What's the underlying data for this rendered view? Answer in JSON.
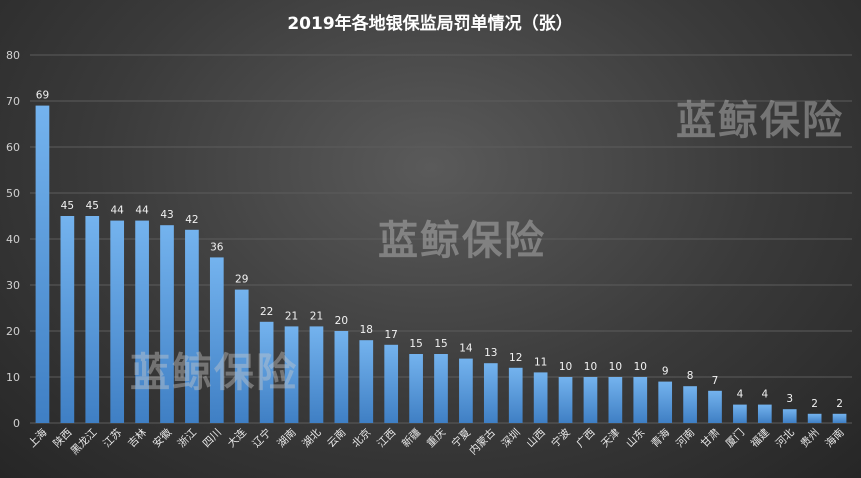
{
  "chart_data": {
    "type": "bar",
    "title": "2019年各地银保监局罚单情况（张）",
    "xlabel": "",
    "ylabel": "",
    "ylim": [
      0,
      80
    ],
    "yticks": [
      0,
      10,
      20,
      30,
      40,
      50,
      60,
      70,
      80
    ],
    "grid": true,
    "categories": [
      "上海",
      "陕西",
      "黑龙江",
      "江苏",
      "吉林",
      "安徽",
      "浙江",
      "四川",
      "大连",
      "辽宁",
      "湖南",
      "湖北",
      "云南",
      "北京",
      "江西",
      "新疆",
      "重庆",
      "宁夏",
      "内蒙古",
      "深圳",
      "山西",
      "宁波",
      "广西",
      "天津",
      "山东",
      "青海",
      "河南",
      "甘肃",
      "厦门",
      "福建",
      "河北",
      "贵州",
      "海南"
    ],
    "values": [
      69,
      45,
      45,
      44,
      44,
      43,
      42,
      36,
      29,
      22,
      21,
      21,
      20,
      18,
      17,
      15,
      15,
      14,
      13,
      12,
      11,
      10,
      10,
      10,
      10,
      9,
      8,
      7,
      4,
      4,
      3,
      2,
      2
    ],
    "bar_color": "#5b9bd5"
  },
  "watermark": "蓝鲸保险"
}
